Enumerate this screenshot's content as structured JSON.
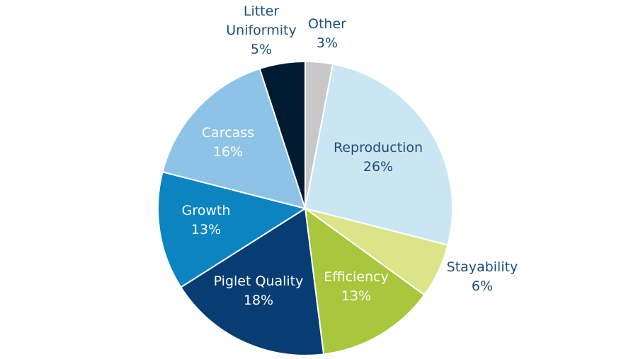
{
  "chart_data": {
    "type": "pie",
    "title": "",
    "start": "top",
    "direction": "clockwise",
    "legend": "none",
    "slices": [
      {
        "label": "Other",
        "value": 3,
        "value_label": "3%",
        "color": "#c8c8c8",
        "text_color": "#1f4e79",
        "label_position": "outside"
      },
      {
        "label": "Reproduction",
        "value": 26,
        "value_label": "26%",
        "color": "#cbe6f3",
        "text_color": "#1f4e79",
        "label_position": "inside"
      },
      {
        "label": "Stayability",
        "value": 6,
        "value_label": "6%",
        "color": "#dce48a",
        "text_color": "#1f4e79",
        "label_position": "outside"
      },
      {
        "label": "Efficiency",
        "value": 13,
        "value_label": "13%",
        "color": "#a8c73c",
        "text_color": "#ffffff",
        "label_position": "inside"
      },
      {
        "label": "Piglet Quality",
        "value": 18,
        "value_label": "18%",
        "color": "#073d73",
        "text_color": "#ffffff",
        "label_position": "inside"
      },
      {
        "label": "Growth",
        "value": 13,
        "value_label": "13%",
        "color": "#0b84c1",
        "text_color": "#ffffff",
        "label_position": "inside"
      },
      {
        "label": "Carcass",
        "value": 16,
        "value_label": "16%",
        "color": "#8cc3e6",
        "text_color": "#ffffff",
        "label_position": "inside"
      },
      {
        "label": "Litter Uniformity",
        "label_lines": [
          "Litter",
          "Uniformity"
        ],
        "value": 5,
        "value_label": "5%",
        "color": "#031a33",
        "text_color": "#1f4e79",
        "label_position": "outside"
      }
    ]
  }
}
